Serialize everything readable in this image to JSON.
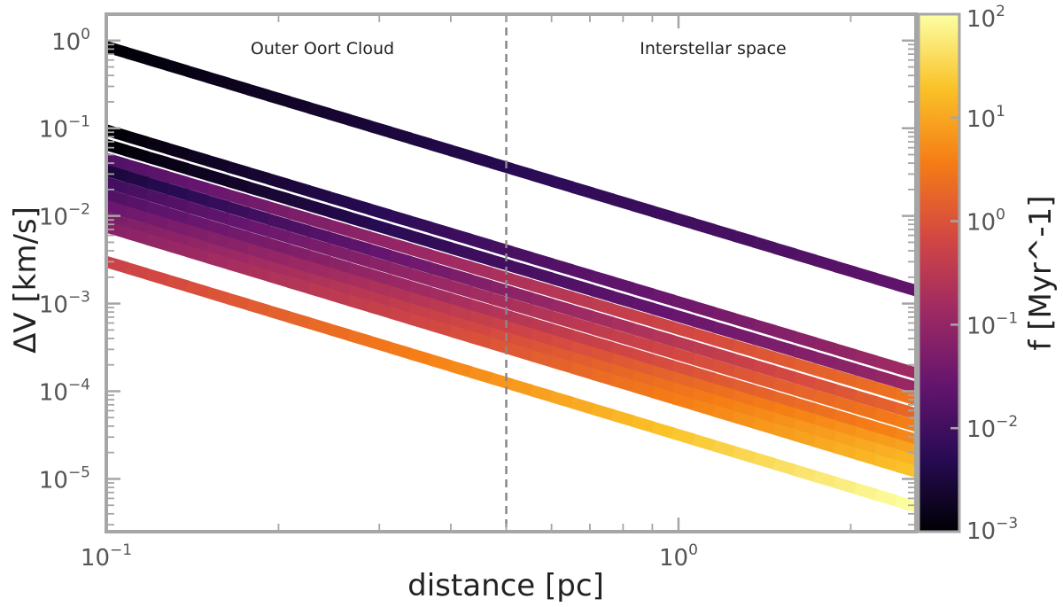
{
  "chart_data": {
    "type": "line",
    "title": "",
    "xlabel": "distance [pc]",
    "ylabel": "ΔV [km/s]",
    "colorbar_label": "f [Myr^-1]",
    "x_scale": "log",
    "y_scale": "log",
    "xlim": [
      0.1,
      2.6
    ],
    "ylim": [
      2.5e-06,
      2.0
    ],
    "x_ticks": [
      {
        "value": 0.1,
        "base": "10",
        "exp": "−1"
      },
      {
        "value": 1.0,
        "base": "10",
        "exp": "0"
      }
    ],
    "y_ticks": [
      {
        "value": 1.0,
        "base": "10",
        "exp": "0"
      },
      {
        "value": 0.1,
        "base": "10",
        "exp": "−1"
      },
      {
        "value": 0.01,
        "base": "10",
        "exp": "−2"
      },
      {
        "value": 0.001,
        "base": "10",
        "exp": "−3"
      },
      {
        "value": 0.0001,
        "base": "10",
        "exp": "−4"
      },
      {
        "value": 1e-05,
        "base": "10",
        "exp": "−5"
      }
    ],
    "colorbar": {
      "scale": "log",
      "range": [
        0.001,
        100
      ],
      "colormap": [
        "#000004",
        "#280b54",
        "#65156e",
        "#9f2a63",
        "#d44842",
        "#f57d15",
        "#fac228",
        "#fcffa4"
      ],
      "ticks": [
        {
          "value": 100,
          "base": "10",
          "exp": "2"
        },
        {
          "value": 10,
          "base": "10",
          "exp": "1"
        },
        {
          "value": 1,
          "base": "10",
          "exp": "0"
        },
        {
          "value": 0.1,
          "base": "10",
          "exp": "−1"
        },
        {
          "value": 0.01,
          "base": "10",
          "exp": "−2"
        },
        {
          "value": 0.001,
          "base": "10",
          "exp": "−3"
        }
      ]
    },
    "divider": {
      "x": 0.5,
      "style": "dashed"
    },
    "regions": [
      {
        "text": "Outer Oort Cloud"
      },
      {
        "text": "Interstellar space"
      }
    ],
    "series": [
      {
        "y_start": 0.85,
        "y_end": 0.0014,
        "f_start": 0.001,
        "f_end": 0.025
      },
      {
        "y_start": 0.095,
        "y_end": 0.00016,
        "f_start": 0.001,
        "f_end": 0.15
      },
      {
        "y_start": 0.065,
        "y_end": 0.00011,
        "f_start": 0.001,
        "f_end": 0.12
      },
      {
        "y_start": 0.045,
        "y_end": 8e-05,
        "f_start": 0.015,
        "f_end": 3.0
      },
      {
        "y_start": 0.033,
        "y_end": 5.5e-05,
        "f_start": 0.003,
        "f_end": 2.0
      },
      {
        "y_start": 0.024,
        "y_end": 4e-05,
        "f_start": 0.01,
        "f_end": 4.0
      },
      {
        "y_start": 0.0175,
        "y_end": 2.8e-05,
        "f_start": 0.015,
        "f_end": 5.0
      },
      {
        "y_start": 0.013,
        "y_end": 2.1e-05,
        "f_start": 0.03,
        "f_end": 10.0
      },
      {
        "y_start": 0.0095,
        "y_end": 1.6e-05,
        "f_start": 0.05,
        "f_end": 15.0
      },
      {
        "y_start": 0.0075,
        "y_end": 1.2e-05,
        "f_start": 0.07,
        "f_end": 20.0
      },
      {
        "y_start": 0.003,
        "y_end": 4.8e-06,
        "f_start": 0.5,
        "f_end": 100.0
      }
    ]
  }
}
